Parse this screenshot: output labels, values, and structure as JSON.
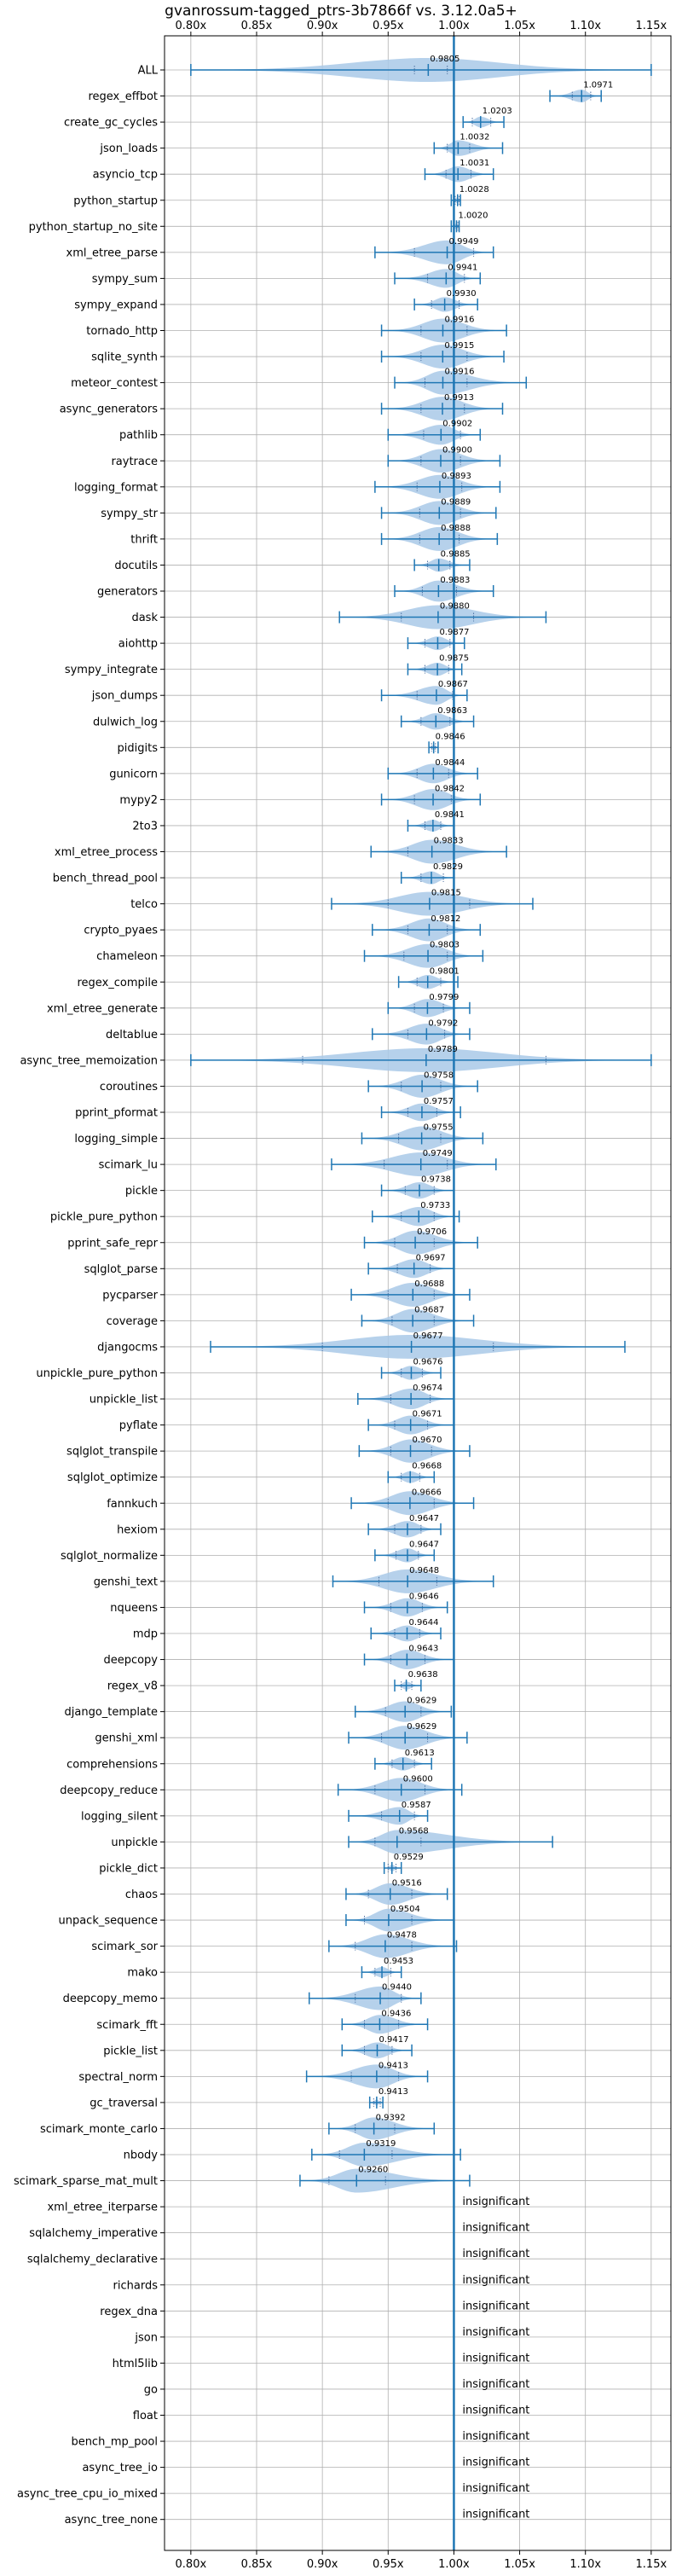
{
  "chart_data": {
    "type": "violin",
    "title": "gvanrossum-tagged_ptrs-3b7866f vs. 3.12.0a5+",
    "xlim": [
      0.78,
      1.165
    ],
    "xticks": [
      0.8,
      0.85,
      0.9,
      0.95,
      1.0,
      1.05,
      1.1,
      1.15
    ],
    "xtick_labels": [
      "0.80x",
      "0.85x",
      "0.90x",
      "0.95x",
      "1.00x",
      "1.05x",
      "1.10x",
      "1.15x"
    ],
    "reference_line": 1.0,
    "grid": true,
    "colors": {
      "violin": "#a9c9e8",
      "line": "#1f77b4"
    },
    "insignificant_label": "insignificant",
    "benchmarks": [
      {
        "name": "ALL",
        "value": 0.9805,
        "label": "0.9805",
        "min": 0.8,
        "max": 1.15,
        "q1": 0.97,
        "q3": 0.995
      },
      {
        "name": "regex_effbot",
        "value": 1.0971,
        "label": "1.0971",
        "min": 1.073,
        "max": 1.112,
        "q1": 1.09,
        "q3": 1.104
      },
      {
        "name": "create_gc_cycles",
        "value": 1.0203,
        "label": "1.0203",
        "min": 1.007,
        "max": 1.038,
        "q1": 1.014,
        "q3": 1.028
      },
      {
        "name": "json_loads",
        "value": 1.0032,
        "label": "1.0032",
        "min": 0.985,
        "max": 1.037,
        "q1": 0.995,
        "q3": 1.012
      },
      {
        "name": "asyncio_tcp",
        "value": 1.0031,
        "label": "1.0031",
        "min": 0.978,
        "max": 1.03,
        "q1": 0.994,
        "q3": 1.013
      },
      {
        "name": "python_startup",
        "value": 1.0028,
        "label": "1.0028",
        "min": 0.998,
        "max": 1.005,
        "q1": 1.001,
        "q3": 1.004
      },
      {
        "name": "python_startup_no_site",
        "value": 1.002,
        "label": "1.0020",
        "min": 0.998,
        "max": 1.004,
        "q1": 1.0,
        "q3": 1.003
      },
      {
        "name": "xml_etree_parse",
        "value": 0.9949,
        "label": "0.9949",
        "min": 0.94,
        "max": 1.03,
        "q1": 0.97,
        "q3": 1.015
      },
      {
        "name": "sympy_sum",
        "value": 0.9941,
        "label": "0.9941",
        "min": 0.955,
        "max": 1.02,
        "q1": 0.98,
        "q3": 1.008
      },
      {
        "name": "sympy_expand",
        "value": 0.993,
        "label": "0.9930",
        "min": 0.97,
        "max": 1.018,
        "q1": 0.983,
        "q3": 1.004
      },
      {
        "name": "tornado_http",
        "value": 0.9916,
        "label": "0.9916",
        "min": 0.945,
        "max": 1.04,
        "q1": 0.975,
        "q3": 1.01
      },
      {
        "name": "sqlite_synth",
        "value": 0.9915,
        "label": "0.9915",
        "min": 0.945,
        "max": 1.038,
        "q1": 0.975,
        "q3": 1.01
      },
      {
        "name": "meteor_contest",
        "value": 0.9916,
        "label": "0.9916",
        "min": 0.955,
        "max": 1.055,
        "q1": 0.978,
        "q3": 1.01
      },
      {
        "name": "async_generators",
        "value": 0.9913,
        "label": "0.9913",
        "min": 0.945,
        "max": 1.037,
        "q1": 0.975,
        "q3": 1.008
      },
      {
        "name": "pathlib",
        "value": 0.9902,
        "label": "0.9902",
        "min": 0.95,
        "max": 1.02,
        "q1": 0.977,
        "q3": 1.005
      },
      {
        "name": "raytrace",
        "value": 0.99,
        "label": "0.9900",
        "min": 0.95,
        "max": 1.035,
        "q1": 0.975,
        "q3": 1.005
      },
      {
        "name": "logging_format",
        "value": 0.9893,
        "label": "0.9893",
        "min": 0.94,
        "max": 1.035,
        "q1": 0.972,
        "q3": 1.006
      },
      {
        "name": "sympy_str",
        "value": 0.9889,
        "label": "0.9889",
        "min": 0.945,
        "max": 1.032,
        "q1": 0.974,
        "q3": 1.005
      },
      {
        "name": "thrift",
        "value": 0.9888,
        "label": "0.9888",
        "min": 0.945,
        "max": 1.033,
        "q1": 0.974,
        "q3": 1.004
      },
      {
        "name": "docutils",
        "value": 0.9885,
        "label": "0.9885",
        "min": 0.97,
        "max": 1.012,
        "q1": 0.98,
        "q3": 0.997
      },
      {
        "name": "generators",
        "value": 0.9883,
        "label": "0.9883",
        "min": 0.955,
        "max": 1.03,
        "q1": 0.976,
        "q3": 1.002
      },
      {
        "name": "dask",
        "value": 0.988,
        "label": "0.9880",
        "min": 0.913,
        "max": 1.07,
        "q1": 0.96,
        "q3": 1.015
      },
      {
        "name": "aiohttp",
        "value": 0.9877,
        "label": "0.9877",
        "min": 0.965,
        "max": 1.008,
        "q1": 0.978,
        "q3": 0.997
      },
      {
        "name": "sympy_integrate",
        "value": 0.9875,
        "label": "0.9875",
        "min": 0.965,
        "max": 1.006,
        "q1": 0.978,
        "q3": 0.996
      },
      {
        "name": "json_dumps",
        "value": 0.9867,
        "label": "0.9867",
        "min": 0.945,
        "max": 1.01,
        "q1": 0.972,
        "q3": 0.999
      },
      {
        "name": "dulwich_log",
        "value": 0.9863,
        "label": "0.9863",
        "min": 0.96,
        "max": 1.015,
        "q1": 0.975,
        "q3": 0.997
      },
      {
        "name": "pidigits",
        "value": 0.9846,
        "label": "0.9846",
        "min": 0.981,
        "max": 0.988,
        "q1": 0.983,
        "q3": 0.986
      },
      {
        "name": "gunicorn",
        "value": 0.9844,
        "label": "0.9844",
        "min": 0.95,
        "max": 1.018,
        "q1": 0.972,
        "q3": 0.996
      },
      {
        "name": "mypy2",
        "value": 0.9842,
        "label": "0.9842",
        "min": 0.945,
        "max": 1.02,
        "q1": 0.97,
        "q3": 0.998
      },
      {
        "name": "2to3",
        "value": 0.9841,
        "label": "0.9841",
        "min": 0.965,
        "max": 1.0,
        "q1": 0.978,
        "q3": 0.99
      },
      {
        "name": "xml_etree_process",
        "value": 0.9833,
        "label": "0.9833",
        "min": 0.937,
        "max": 1.04,
        "q1": 0.965,
        "q3": 1.0
      },
      {
        "name": "bench_thread_pool",
        "value": 0.9829,
        "label": "0.9829",
        "min": 0.96,
        "max": 1.0,
        "q1": 0.975,
        "q3": 0.992
      },
      {
        "name": "telco",
        "value": 0.9815,
        "label": "0.9815",
        "min": 0.907,
        "max": 1.06,
        "q1": 0.95,
        "q3": 1.012
      },
      {
        "name": "crypto_pyaes",
        "value": 0.9812,
        "label": "0.9812",
        "min": 0.938,
        "max": 1.02,
        "q1": 0.965,
        "q3": 0.995
      },
      {
        "name": "chameleon",
        "value": 0.9803,
        "label": "0.9803",
        "min": 0.932,
        "max": 1.022,
        "q1": 0.962,
        "q3": 0.995
      },
      {
        "name": "regex_compile",
        "value": 0.9801,
        "label": "0.9801",
        "min": 0.958,
        "max": 1.003,
        "q1": 0.972,
        "q3": 0.99
      },
      {
        "name": "xml_etree_generate",
        "value": 0.9799,
        "label": "0.9799",
        "min": 0.95,
        "max": 1.012,
        "q1": 0.97,
        "q3": 0.992
      },
      {
        "name": "deltablue",
        "value": 0.9792,
        "label": "0.9792",
        "min": 0.938,
        "max": 1.012,
        "q1": 0.965,
        "q3": 0.993
      },
      {
        "name": "async_tree_memoization",
        "value": 0.9789,
        "label": "0.9789",
        "min": 0.8,
        "max": 1.15,
        "q1": 0.885,
        "q3": 1.07
      },
      {
        "name": "coroutines",
        "value": 0.9758,
        "label": "0.9758",
        "min": 0.935,
        "max": 1.018,
        "q1": 0.96,
        "q3": 0.99
      },
      {
        "name": "pprint_pformat",
        "value": 0.9757,
        "label": "0.9757",
        "min": 0.945,
        "max": 1.005,
        "q1": 0.965,
        "q3": 0.987
      },
      {
        "name": "logging_simple",
        "value": 0.9755,
        "label": "0.9755",
        "min": 0.93,
        "max": 1.022,
        "q1": 0.958,
        "q3": 0.99
      },
      {
        "name": "scimark_lu",
        "value": 0.9749,
        "label": "0.9749",
        "min": 0.907,
        "max": 1.032,
        "q1": 0.947,
        "q3": 0.995
      },
      {
        "name": "pickle",
        "value": 0.9738,
        "label": "0.9738",
        "min": 0.945,
        "max": 1.0,
        "q1": 0.963,
        "q3": 0.985
      },
      {
        "name": "pickle_pure_python",
        "value": 0.9733,
        "label": "0.9733",
        "min": 0.938,
        "max": 1.004,
        "q1": 0.96,
        "q3": 0.985
      },
      {
        "name": "pprint_safe_repr",
        "value": 0.9706,
        "label": "0.9706",
        "min": 0.932,
        "max": 1.018,
        "q1": 0.955,
        "q3": 0.985
      },
      {
        "name": "sqlglot_parse",
        "value": 0.9697,
        "label": "0.9697",
        "min": 0.935,
        "max": 1.0,
        "q1": 0.957,
        "q3": 0.982
      },
      {
        "name": "pycparser",
        "value": 0.9688,
        "label": "0.9688",
        "min": 0.922,
        "max": 1.012,
        "q1": 0.95,
        "q3": 0.985
      },
      {
        "name": "coverage",
        "value": 0.9687,
        "label": "0.9687",
        "min": 0.93,
        "max": 1.015,
        "q1": 0.953,
        "q3": 0.985
      },
      {
        "name": "djangocms",
        "value": 0.9677,
        "label": "0.9677",
        "min": 0.815,
        "max": 1.13,
        "q1": 0.9,
        "q3": 1.03
      },
      {
        "name": "unpickle_pure_python",
        "value": 0.9676,
        "label": "0.9676",
        "min": 0.945,
        "max": 0.99,
        "q1": 0.96,
        "q3": 0.976
      },
      {
        "name": "unpickle_list",
        "value": 0.9674,
        "label": "0.9674",
        "min": 0.927,
        "max": 1.0,
        "q1": 0.952,
        "q3": 0.982
      },
      {
        "name": "pyflate",
        "value": 0.9671,
        "label": "0.9671",
        "min": 0.935,
        "max": 1.0,
        "q1": 0.955,
        "q3": 0.98
      },
      {
        "name": "sqlglot_transpile",
        "value": 0.967,
        "label": "0.9670",
        "min": 0.928,
        "max": 1.012,
        "q1": 0.952,
        "q3": 0.983
      },
      {
        "name": "sqlglot_optimize",
        "value": 0.9668,
        "label": "0.9668",
        "min": 0.95,
        "max": 0.985,
        "q1": 0.96,
        "q3": 0.974
      },
      {
        "name": "fannkuch",
        "value": 0.9666,
        "label": "0.9666",
        "min": 0.922,
        "max": 1.015,
        "q1": 0.95,
        "q3": 0.985
      },
      {
        "name": "hexiom",
        "value": 0.9647,
        "label": "0.9647",
        "min": 0.935,
        "max": 0.99,
        "q1": 0.955,
        "q3": 0.975
      },
      {
        "name": "sqlglot_normalize",
        "value": 0.9647,
        "label": "0.9647",
        "min": 0.94,
        "max": 0.985,
        "q1": 0.956,
        "q3": 0.973
      },
      {
        "name": "genshi_text",
        "value": 0.9648,
        "label": "0.9648",
        "min": 0.908,
        "max": 1.03,
        "q1": 0.943,
        "q3": 0.987
      },
      {
        "name": "nqueens",
        "value": 0.9646,
        "label": "0.9646",
        "min": 0.932,
        "max": 0.995,
        "q1": 0.952,
        "q3": 0.976
      },
      {
        "name": "mdp",
        "value": 0.9644,
        "label": "0.9644",
        "min": 0.937,
        "max": 0.99,
        "q1": 0.955,
        "q3": 0.974
      },
      {
        "name": "deepcopy",
        "value": 0.9643,
        "label": "0.9643",
        "min": 0.932,
        "max": 1.0,
        "q1": 0.952,
        "q3": 0.978
      },
      {
        "name": "regex_v8",
        "value": 0.9638,
        "label": "0.9638",
        "min": 0.955,
        "max": 0.975,
        "q1": 0.96,
        "q3": 0.968
      },
      {
        "name": "django_template",
        "value": 0.9629,
        "label": "0.9629",
        "min": 0.925,
        "max": 0.998,
        "q1": 0.948,
        "q3": 0.975
      },
      {
        "name": "genshi_xml",
        "value": 0.9629,
        "label": "0.9629",
        "min": 0.92,
        "max": 1.01,
        "q1": 0.945,
        "q3": 0.98
      },
      {
        "name": "comprehensions",
        "value": 0.9613,
        "label": "0.9613",
        "min": 0.94,
        "max": 0.983,
        "q1": 0.953,
        "q3": 0.97
      },
      {
        "name": "deepcopy_reduce",
        "value": 0.96,
        "label": "0.9600",
        "min": 0.912,
        "max": 1.006,
        "q1": 0.94,
        "q3": 0.978
      },
      {
        "name": "logging_silent",
        "value": 0.9587,
        "label": "0.9587",
        "min": 0.92,
        "max": 0.98,
        "q1": 0.945,
        "q3": 0.97
      },
      {
        "name": "unpickle",
        "value": 0.9568,
        "label": "0.9568",
        "min": 0.92,
        "max": 1.075,
        "q1": 0.94,
        "q3": 0.975
      },
      {
        "name": "pickle_dict",
        "value": 0.9529,
        "label": "0.9529",
        "min": 0.947,
        "max": 0.96,
        "q1": 0.95,
        "q3": 0.956
      },
      {
        "name": "chaos",
        "value": 0.9516,
        "label": "0.9516",
        "min": 0.918,
        "max": 0.995,
        "q1": 0.935,
        "q3": 0.968
      },
      {
        "name": "unpack_sequence",
        "value": 0.9504,
        "label": "0.9504",
        "min": 0.918,
        "max": 1.0,
        "q1": 0.932,
        "q3": 0.968
      },
      {
        "name": "scimark_sor",
        "value": 0.9478,
        "label": "0.9478",
        "min": 0.905,
        "max": 1.002,
        "q1": 0.925,
        "q3": 0.968
      },
      {
        "name": "mako",
        "value": 0.9453,
        "label": "0.9453",
        "min": 0.93,
        "max": 0.96,
        "q1": 0.94,
        "q3": 0.952
      },
      {
        "name": "deepcopy_memo",
        "value": 0.944,
        "label": "0.9440",
        "min": 0.89,
        "max": 0.975,
        "q1": 0.925,
        "q3": 0.96
      },
      {
        "name": "scimark_fft",
        "value": 0.9436,
        "label": "0.9436",
        "min": 0.915,
        "max": 0.98,
        "q1": 0.932,
        "q3": 0.958
      },
      {
        "name": "pickle_list",
        "value": 0.9417,
        "label": "0.9417",
        "min": 0.915,
        "max": 0.968,
        "q1": 0.932,
        "q3": 0.953
      },
      {
        "name": "spectral_norm",
        "value": 0.9413,
        "label": "0.9413",
        "min": 0.888,
        "max": 0.98,
        "q1": 0.922,
        "q3": 0.958
      },
      {
        "name": "gc_traversal",
        "value": 0.9413,
        "label": "0.9413",
        "min": 0.936,
        "max": 0.946,
        "q1": 0.939,
        "q3": 0.944
      },
      {
        "name": "scimark_monte_carlo",
        "value": 0.9392,
        "label": "0.9392",
        "min": 0.905,
        "max": 0.985,
        "q1": 0.925,
        "q3": 0.955
      },
      {
        "name": "nbody",
        "value": 0.9319,
        "label": "0.9319",
        "min": 0.892,
        "max": 1.005,
        "q1": 0.913,
        "q3": 0.953
      },
      {
        "name": "scimark_sparse_mat_mult",
        "value": 0.926,
        "label": "0.9260",
        "min": 0.883,
        "max": 1.012,
        "q1": 0.905,
        "q3": 0.948
      },
      {
        "name": "xml_etree_iterparse",
        "insignificant": true
      },
      {
        "name": "sqlalchemy_imperative",
        "insignificant": true
      },
      {
        "name": "sqlalchemy_declarative",
        "insignificant": true
      },
      {
        "name": "richards",
        "insignificant": true
      },
      {
        "name": "regex_dna",
        "insignificant": true
      },
      {
        "name": "json",
        "insignificant": true
      },
      {
        "name": "html5lib",
        "insignificant": true
      },
      {
        "name": "go",
        "insignificant": true
      },
      {
        "name": "float",
        "insignificant": true
      },
      {
        "name": "bench_mp_pool",
        "insignificant": true
      },
      {
        "name": "async_tree_io",
        "insignificant": true
      },
      {
        "name": "async_tree_cpu_io_mixed",
        "insignificant": true
      },
      {
        "name": "async_tree_none",
        "insignificant": true
      }
    ]
  }
}
